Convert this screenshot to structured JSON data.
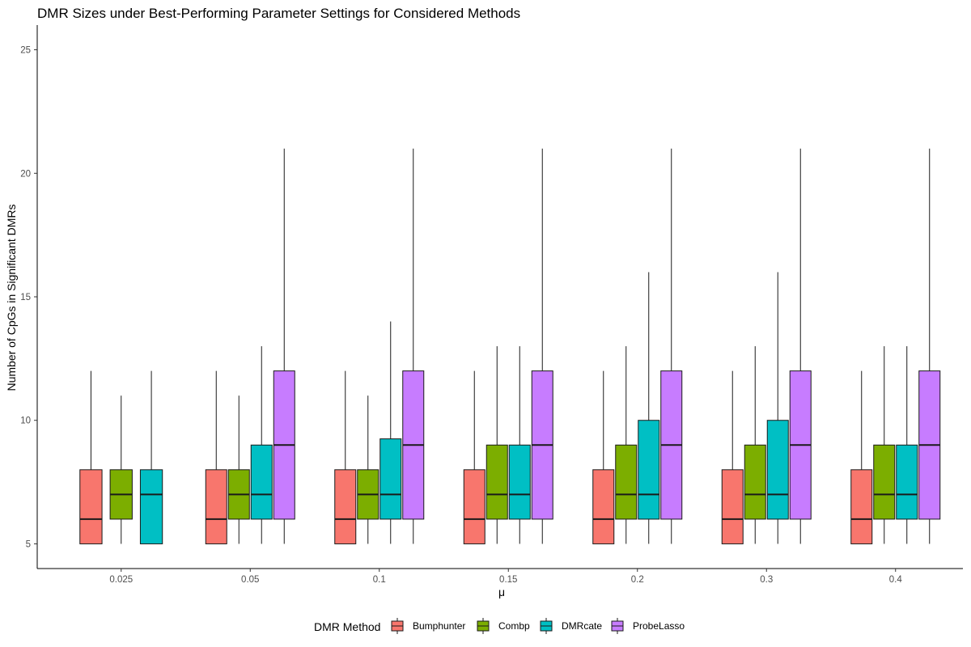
{
  "chart_data": {
    "type": "boxplot",
    "title": "DMR Sizes under Best-Performing Parameter Settings for Considered Methods",
    "xlabel": "μ",
    "ylabel": "Number of CpGs in Significant DMRs",
    "ylim": [
      4,
      26
    ],
    "y_ticks": [
      "5",
      "10",
      "15",
      "20",
      "25"
    ],
    "y_tick_values": [
      5,
      10,
      15,
      20,
      25
    ],
    "categories": [
      "0.025",
      "0.05",
      "0.1",
      "0.15",
      "0.2",
      "0.3",
      "0.4"
    ],
    "grid": false,
    "legend": {
      "title": "DMR Method",
      "position": "bottom"
    },
    "series": [
      {
        "name": "Bumphunter",
        "color": "#F8766D",
        "boxes": [
          {
            "min": 5,
            "q1": 5,
            "median": 6,
            "q3": 8,
            "max": 12
          },
          {
            "min": 5,
            "q1": 5,
            "median": 6,
            "q3": 8,
            "max": 12
          },
          {
            "min": 5,
            "q1": 5,
            "median": 6,
            "q3": 8,
            "max": 12
          },
          {
            "min": 5,
            "q1": 5,
            "median": 6,
            "q3": 8,
            "max": 12
          },
          {
            "min": 5,
            "q1": 5,
            "median": 6,
            "q3": 8,
            "max": 12
          },
          {
            "min": 5,
            "q1": 5,
            "median": 6,
            "q3": 8,
            "max": 12
          },
          {
            "min": 5,
            "q1": 5,
            "median": 6,
            "q3": 8,
            "max": 12
          }
        ]
      },
      {
        "name": "Combp",
        "color": "#7CAE00",
        "boxes": [
          {
            "min": 5,
            "q1": 6,
            "median": 7,
            "q3": 8,
            "max": 11
          },
          {
            "min": 5,
            "q1": 6,
            "median": 7,
            "q3": 8,
            "max": 11
          },
          {
            "min": 5,
            "q1": 6,
            "median": 7,
            "q3": 8,
            "max": 11
          },
          {
            "min": 5,
            "q1": 6,
            "median": 7,
            "q3": 9,
            "max": 13
          },
          {
            "min": 5,
            "q1": 6,
            "median": 7,
            "q3": 9,
            "max": 13
          },
          {
            "min": 5,
            "q1": 6,
            "median": 7,
            "q3": 9,
            "max": 13
          },
          {
            "min": 5,
            "q1": 6,
            "median": 7,
            "q3": 9,
            "max": 13
          }
        ]
      },
      {
        "name": "DMRcate",
        "color": "#00BFC4",
        "boxes": [
          {
            "min": 5,
            "q1": 5,
            "median": 7,
            "q3": 8,
            "max": 12
          },
          {
            "min": 5,
            "q1": 6,
            "median": 7,
            "q3": 9,
            "max": 13
          },
          {
            "min": 5,
            "q1": 6,
            "median": 7,
            "q3": 9.25,
            "max": 14
          },
          {
            "min": 5,
            "q1": 6,
            "median": 7,
            "q3": 9,
            "max": 13
          },
          {
            "min": 5,
            "q1": 6,
            "median": 7,
            "q3": 10,
            "max": 16
          },
          {
            "min": 5,
            "q1": 6,
            "median": 7,
            "q3": 10,
            "max": 16
          },
          {
            "min": 5,
            "q1": 6,
            "median": 7,
            "q3": 9,
            "max": 13
          }
        ]
      },
      {
        "name": "ProbeLasso",
        "color": "#C77CFF",
        "boxes": [
          null,
          {
            "min": 5,
            "q1": 6,
            "median": 9,
            "q3": 12,
            "max": 21
          },
          {
            "min": 5,
            "q1": 6,
            "median": 9,
            "q3": 12,
            "max": 21
          },
          {
            "min": 5,
            "q1": 6,
            "median": 9,
            "q3": 12,
            "max": 21
          },
          {
            "min": 5,
            "q1": 6,
            "median": 9,
            "q3": 12,
            "max": 21
          },
          {
            "min": 5,
            "q1": 6,
            "median": 9,
            "q3": 12,
            "max": 21
          },
          {
            "min": 5,
            "q1": 6,
            "median": 9,
            "q3": 12,
            "max": 21
          }
        ]
      }
    ]
  }
}
